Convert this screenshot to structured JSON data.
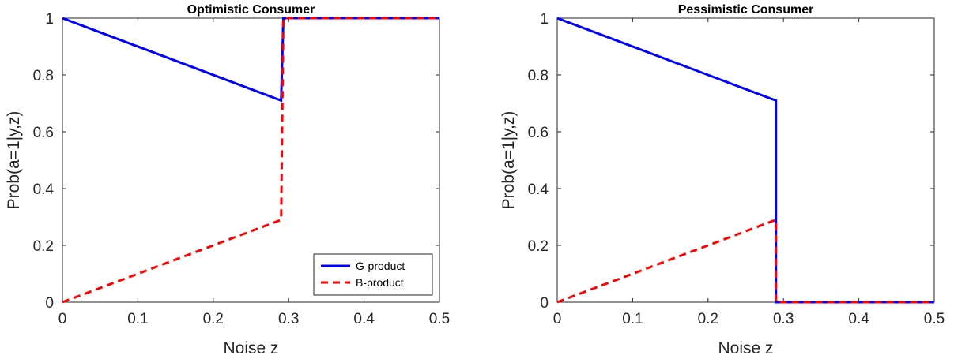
{
  "colors": {
    "g_product": "#0000ff",
    "b_product": "#ff0000",
    "axis": "#262626",
    "background": "#ffffff"
  },
  "chart_data": [
    {
      "type": "line",
      "title": "Optimistic Consumer",
      "xlabel": "Noise z",
      "ylabel": "Prob(a=1|y,z)",
      "xlim": [
        0,
        0.5
      ],
      "ylim": [
        0,
        1
      ],
      "xticks": [
        "0",
        "0.1",
        "0.2",
        "0.3",
        "0.4",
        "0.5"
      ],
      "yticks": [
        "0",
        "0.2",
        "0.4",
        "0.6",
        "0.8",
        "1"
      ],
      "grid": false,
      "legend": {
        "show": true,
        "location": "bottom-right"
      },
      "series": [
        {
          "name": "G-product",
          "style": "solid",
          "color": "#0000ff",
          "x": [
            0,
            0.29,
            0.29,
            0.293,
            0.5
          ],
          "y": [
            1,
            0.71,
            0.71,
            1,
            1
          ]
        },
        {
          "name": "B-product",
          "style": "dashed",
          "color": "#ff0000",
          "x": [
            0,
            0.29,
            0.29,
            0.293,
            0.5
          ],
          "y": [
            0,
            0.29,
            0.29,
            1,
            1
          ]
        }
      ]
    },
    {
      "type": "line",
      "title": "Pessimistic Consumer",
      "xlabel": "Noise z",
      "ylabel": "Prob(a=1|y,z)",
      "xlim": [
        0,
        0.5
      ],
      "ylim": [
        0,
        1
      ],
      "xticks": [
        "0",
        "0.1",
        "0.2",
        "0.3",
        "0.4",
        "0.5"
      ],
      "yticks": [
        "0",
        "0.2",
        "0.4",
        "0.6",
        "0.8",
        "1"
      ],
      "grid": false,
      "legend": {
        "show": false
      },
      "series": [
        {
          "name": "G-product",
          "style": "solid",
          "color": "#0000ff",
          "x": [
            0,
            0.29,
            0.29,
            0.5
          ],
          "y": [
            1,
            0.71,
            0,
            0
          ]
        },
        {
          "name": "B-product",
          "style": "dashed",
          "color": "#ff0000",
          "x": [
            0,
            0.29,
            0.29,
            0.5
          ],
          "y": [
            0,
            0.29,
            0,
            0
          ]
        }
      ]
    }
  ]
}
